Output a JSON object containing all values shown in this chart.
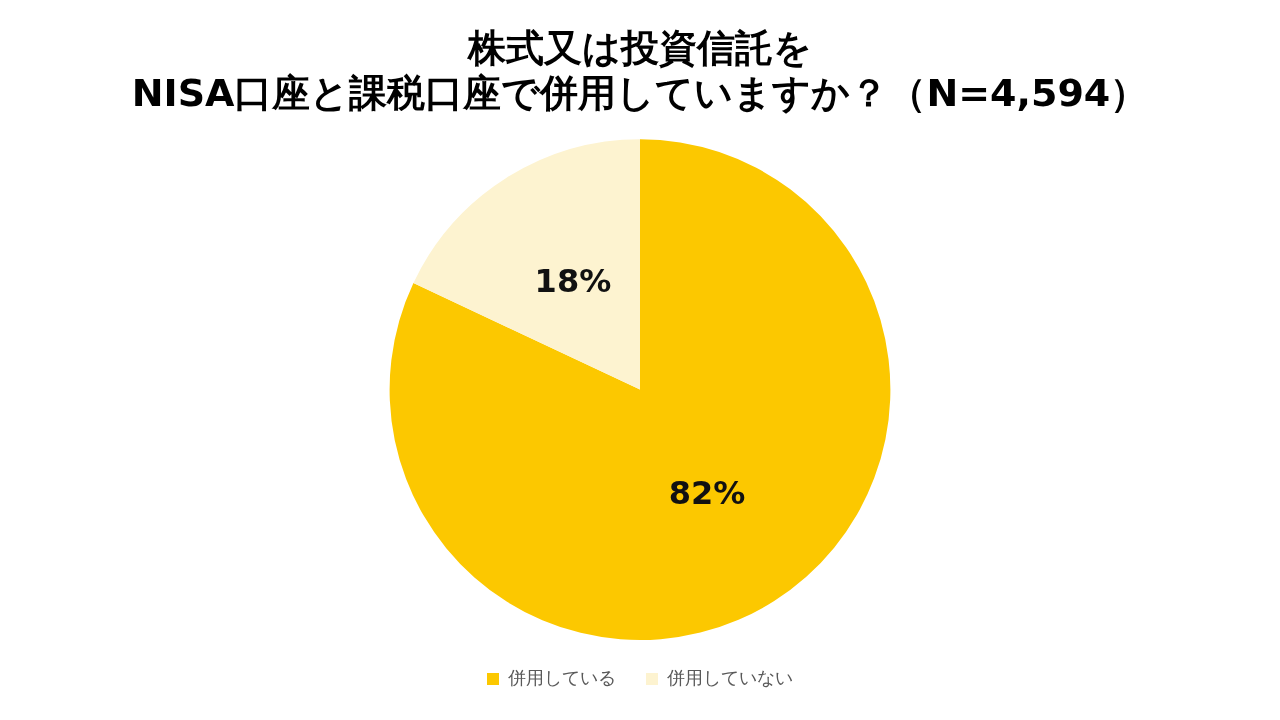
{
  "chart_data": {
    "type": "pie",
    "title": "株式又は投資信託を\nNISA口座と課税口座で併用していますか？（N=4,594）",
    "categories": [
      "併用している",
      "併用していない"
    ],
    "values": [
      82,
      18
    ],
    "colors": [
      "#fcc800",
      "#fdf3d0"
    ],
    "value_labels": [
      "82%",
      "18%"
    ],
    "legend": "bottom"
  }
}
